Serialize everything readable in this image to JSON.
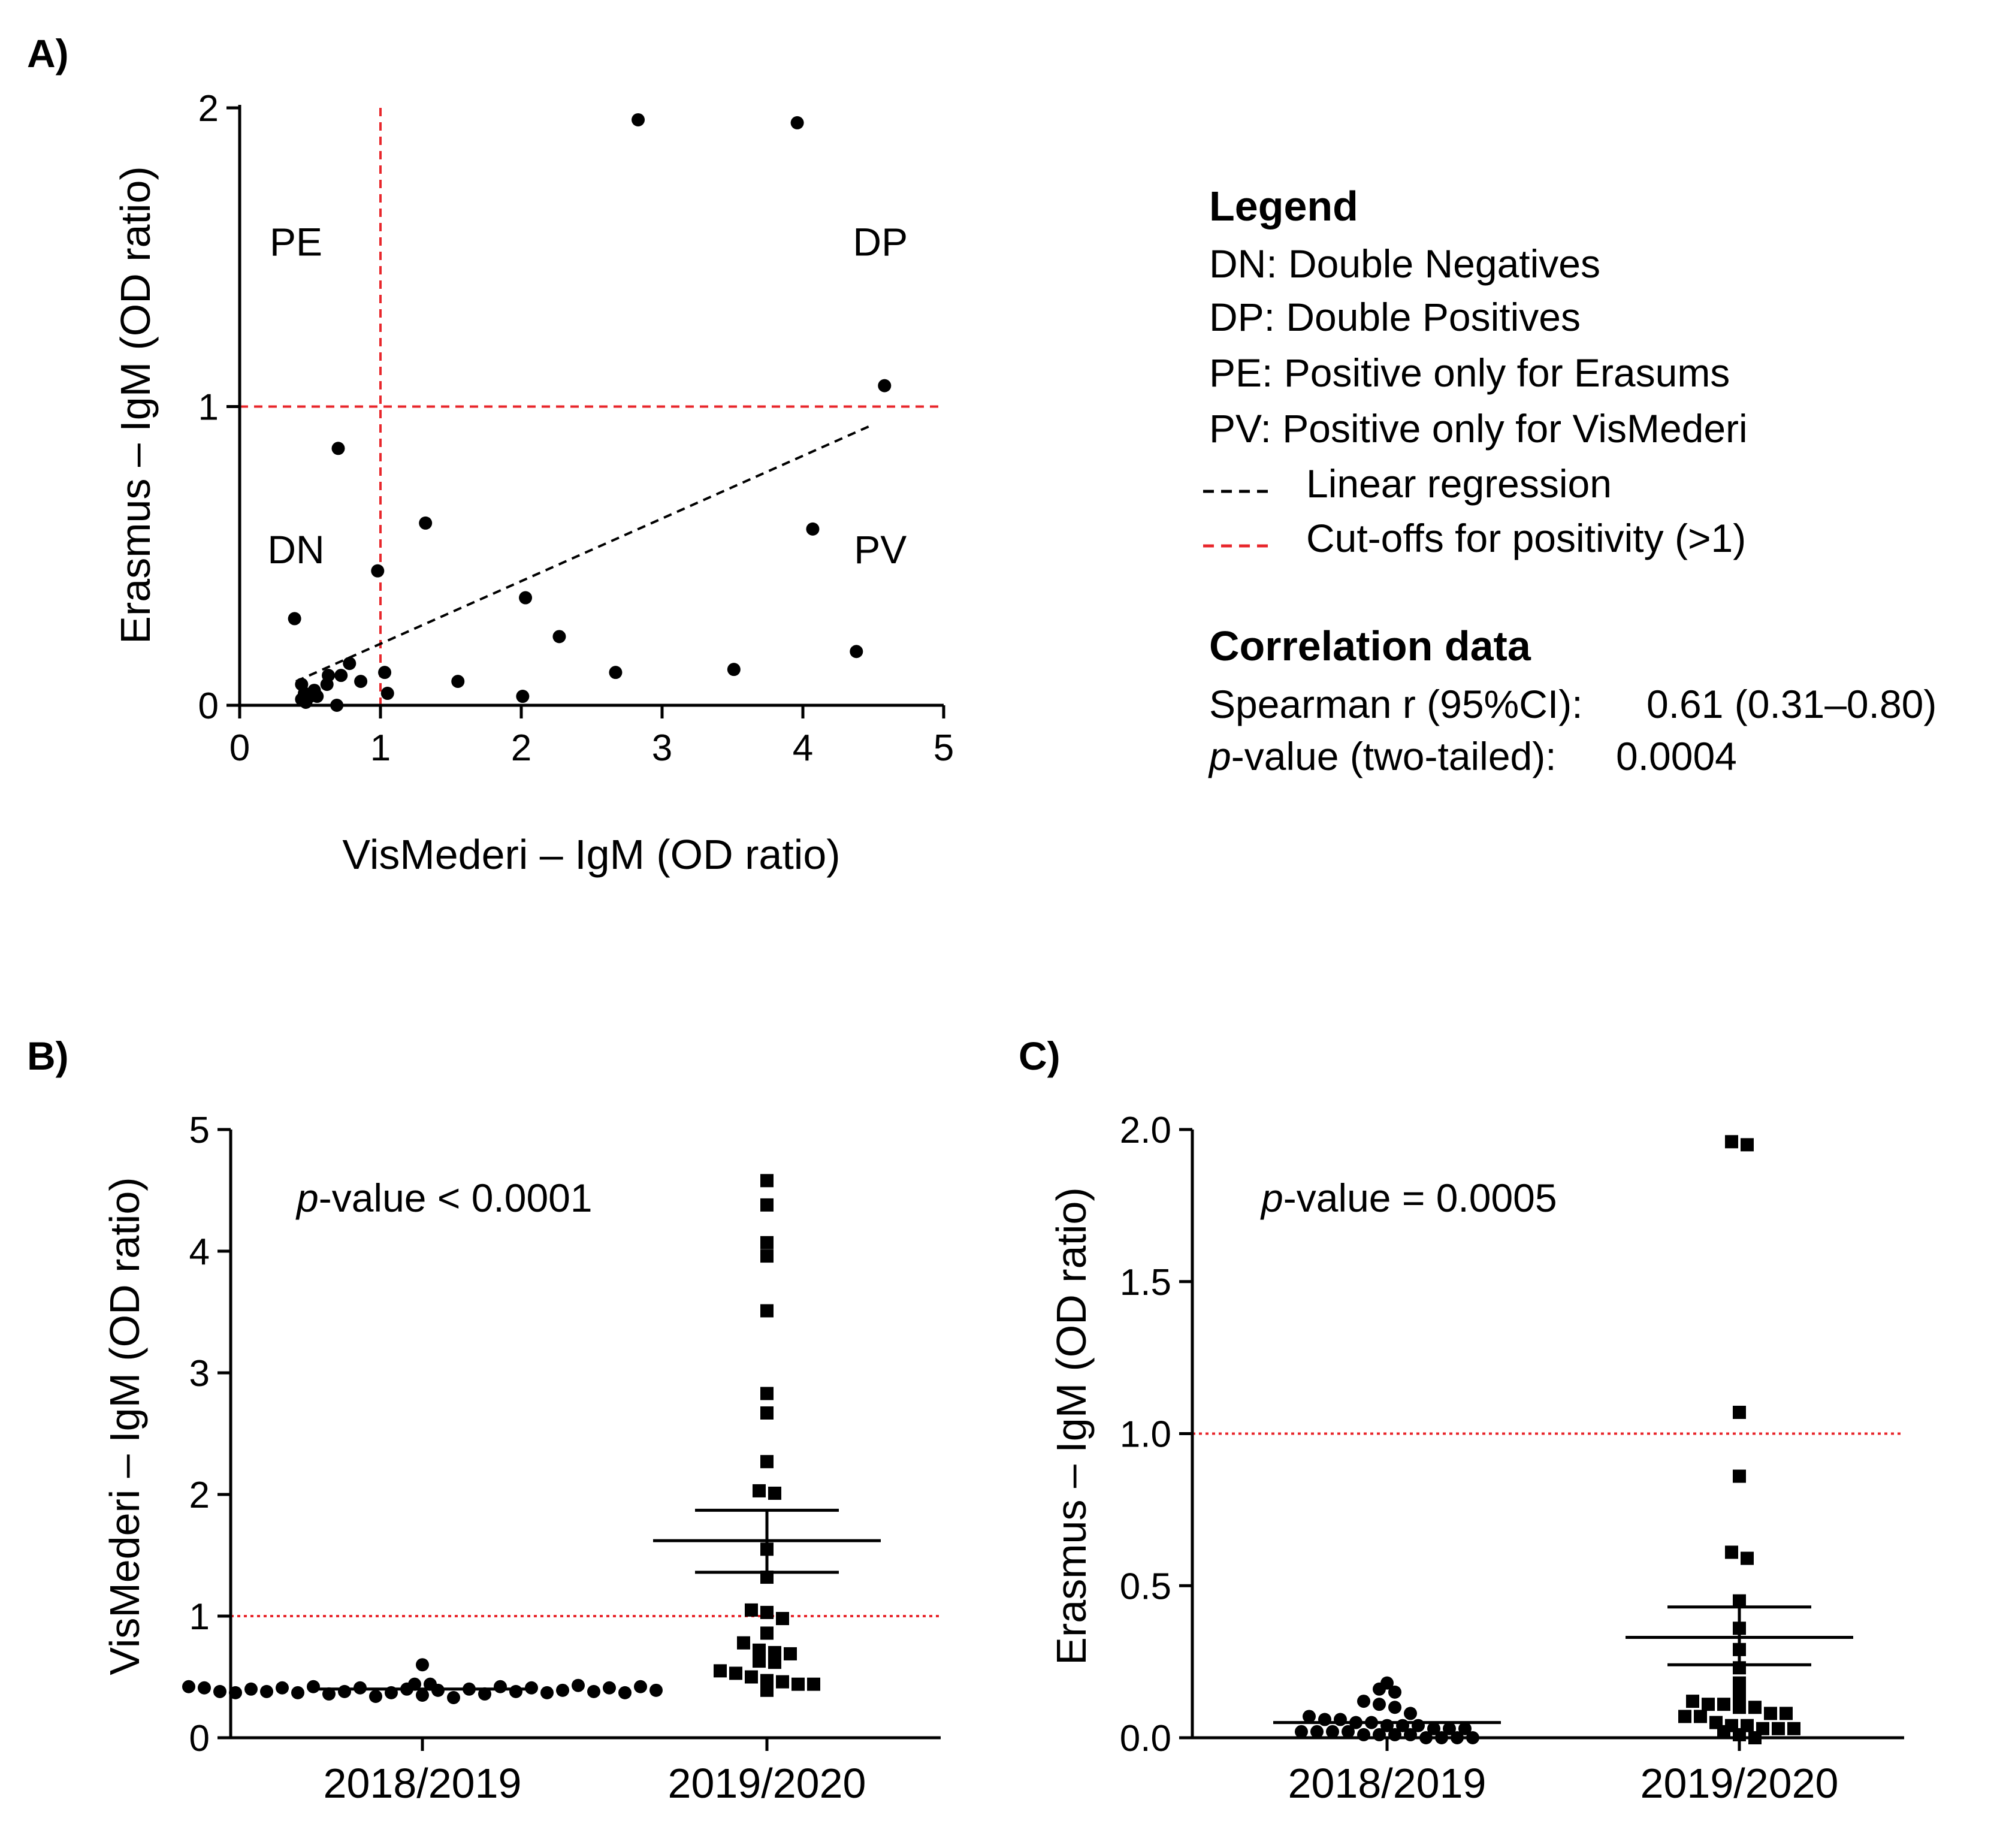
{
  "panels": {
    "a": "A)",
    "b": "B)",
    "c": "C)"
  },
  "legend": {
    "title": "Legend",
    "items": [
      "DN: Double Negatives",
      "DP: Double Positives",
      "PE: Positive only for Erasums",
      "PV: Positive only for VisMederi"
    ],
    "linear_regression": "Linear regression",
    "cutoff": "Cut-offs for positivity (>1)"
  },
  "correlation": {
    "title": "Correlation data",
    "spearman_label": "Spearman r (95%CI):",
    "spearman_value": "0.61 (0.31–0.80)",
    "p_italic": "p",
    "p_label": "-value (two-tailed):",
    "p_value": "0.0004"
  },
  "colors": {
    "points": "#000000",
    "cutoff": "#e8262b",
    "regression": "#000000"
  },
  "chart_data": [
    {
      "id": "A",
      "type": "scatter",
      "title": "",
      "xlabel": "VisMederi – IgM (OD ratio)",
      "ylabel": "Erasmus – IgM (OD ratio)",
      "xlim": [
        0,
        5
      ],
      "ylim": [
        0,
        2
      ],
      "xticks": [
        "0",
        "1",
        "2",
        "3",
        "4",
        "5"
      ],
      "yticks": [
        "0",
        "1",
        "2"
      ],
      "quadrant_labels": [
        {
          "text": "PE",
          "x": 0.4,
          "y": 1.55
        },
        {
          "text": "DP",
          "x": 4.55,
          "y": 1.55
        },
        {
          "text": "DN",
          "x": 0.4,
          "y": 0.52
        },
        {
          "text": "PV",
          "x": 4.55,
          "y": 0.52
        }
      ],
      "cutoff_x": 1,
      "cutoff_y": 1,
      "regression": {
        "x": [
          0.4,
          4.5
        ],
        "y": [
          0.08,
          0.94
        ]
      },
      "points": [
        [
          2.83,
          1.96
        ],
        [
          3.96,
          1.95
        ],
        [
          4.58,
          1.07
        ],
        [
          0.7,
          0.86
        ],
        [
          1.32,
          0.61
        ],
        [
          4.07,
          0.59
        ],
        [
          0.98,
          0.45
        ],
        [
          2.03,
          0.36
        ],
        [
          0.39,
          0.29
        ],
        [
          2.27,
          0.23
        ],
        [
          4.38,
          0.18
        ],
        [
          0.78,
          0.14
        ],
        [
          0.63,
          0.1
        ],
        [
          0.72,
          0.1
        ],
        [
          1.03,
          0.11
        ],
        [
          2.67,
          0.11
        ],
        [
          3.51,
          0.12
        ],
        [
          0.86,
          0.08
        ],
        [
          1.55,
          0.08
        ],
        [
          0.44,
          0.07
        ],
        [
          0.62,
          0.07
        ],
        [
          0.53,
          0.05
        ],
        [
          0.46,
          0.04
        ],
        [
          1.05,
          0.04
        ],
        [
          0.5,
          0.03
        ],
        [
          0.55,
          0.03
        ],
        [
          2.01,
          0.03
        ],
        [
          0.44,
          0.02
        ],
        [
          0.47,
          0.01
        ],
        [
          0.69,
          0.0
        ]
      ]
    },
    {
      "id": "B",
      "type": "scatter",
      "title": "",
      "xlabel": "",
      "ylabel": "VisMederi – IgM (OD ratio)",
      "ylim": [
        0,
        5
      ],
      "yticks": [
        "0",
        "1",
        "2",
        "3",
        "4",
        "5"
      ],
      "categories": [
        "2018/2019",
        "2019/2020"
      ],
      "annotation_italic": "p",
      "annotation": "-value < 0.0001",
      "cutoff_y": 1,
      "series": [
        {
          "name": "2018/2019",
          "marker": "circle",
          "values": [
            0.42,
            0.41,
            0.38,
            0.37,
            0.4,
            0.38,
            0.41,
            0.37,
            0.42,
            0.36,
            0.38,
            0.41,
            0.44,
            0.34,
            0.37,
            0.4,
            0.44,
            0.35,
            0.39,
            0.6,
            0.33,
            0.4,
            0.36,
            0.42,
            0.38,
            0.41,
            0.37,
            0.39,
            0.43,
            0.38,
            0.41,
            0.37,
            0.42,
            0.39
          ],
          "mean": 0.4
        },
        {
          "name": "2019/2020",
          "marker": "square",
          "values": [
            4.58,
            4.38,
            4.07,
            3.96,
            3.51,
            2.83,
            2.67,
            2.27,
            2.03,
            2.01,
            1.55,
            1.32,
            1.05,
            1.03,
            0.98,
            0.86,
            0.78,
            0.72,
            0.7,
            0.69,
            0.63,
            0.62,
            0.55,
            0.53,
            0.5,
            0.47,
            0.46,
            0.44,
            0.44,
            0.39
          ],
          "mean": 1.62,
          "sem": [
            1.36,
            1.87
          ]
        }
      ]
    },
    {
      "id": "C",
      "type": "scatter",
      "title": "",
      "xlabel": "",
      "ylabel": "Erasmus – IgM (OD ratio)",
      "ylim": [
        0,
        2
      ],
      "yticks": [
        "0.0",
        "0.5",
        "1.0",
        "1.5",
        "2.0"
      ],
      "categories": [
        "2018/2019",
        "2019/2020"
      ],
      "annotation_italic": "p",
      "annotation": "-value = 0.0005",
      "cutoff_y": 1,
      "series": [
        {
          "name": "2018/2019",
          "marker": "circle",
          "values": [
            0.18,
            0.16,
            0.15,
            0.12,
            0.11,
            0.1,
            0.08,
            0.07,
            0.06,
            0.06,
            0.05,
            0.05,
            0.04,
            0.04,
            0.04,
            0.03,
            0.03,
            0.03,
            0.02,
            0.02,
            0.02,
            0.02,
            0.01,
            0.01,
            0.01,
            0.01,
            0.0,
            0.0,
            0.0,
            0.0
          ],
          "mean": 0.05
        },
        {
          "name": "2019/2020",
          "marker": "square",
          "values": [
            1.96,
            1.95,
            1.07,
            0.86,
            0.61,
            0.59,
            0.45,
            0.36,
            0.29,
            0.23,
            0.18,
            0.14,
            0.12,
            0.11,
            0.11,
            0.1,
            0.1,
            0.08,
            0.08,
            0.07,
            0.07,
            0.05,
            0.04,
            0.04,
            0.03,
            0.03,
            0.03,
            0.02,
            0.01,
            0.0
          ],
          "mean": 0.33,
          "sem": [
            0.24,
            0.43
          ]
        }
      ]
    }
  ]
}
